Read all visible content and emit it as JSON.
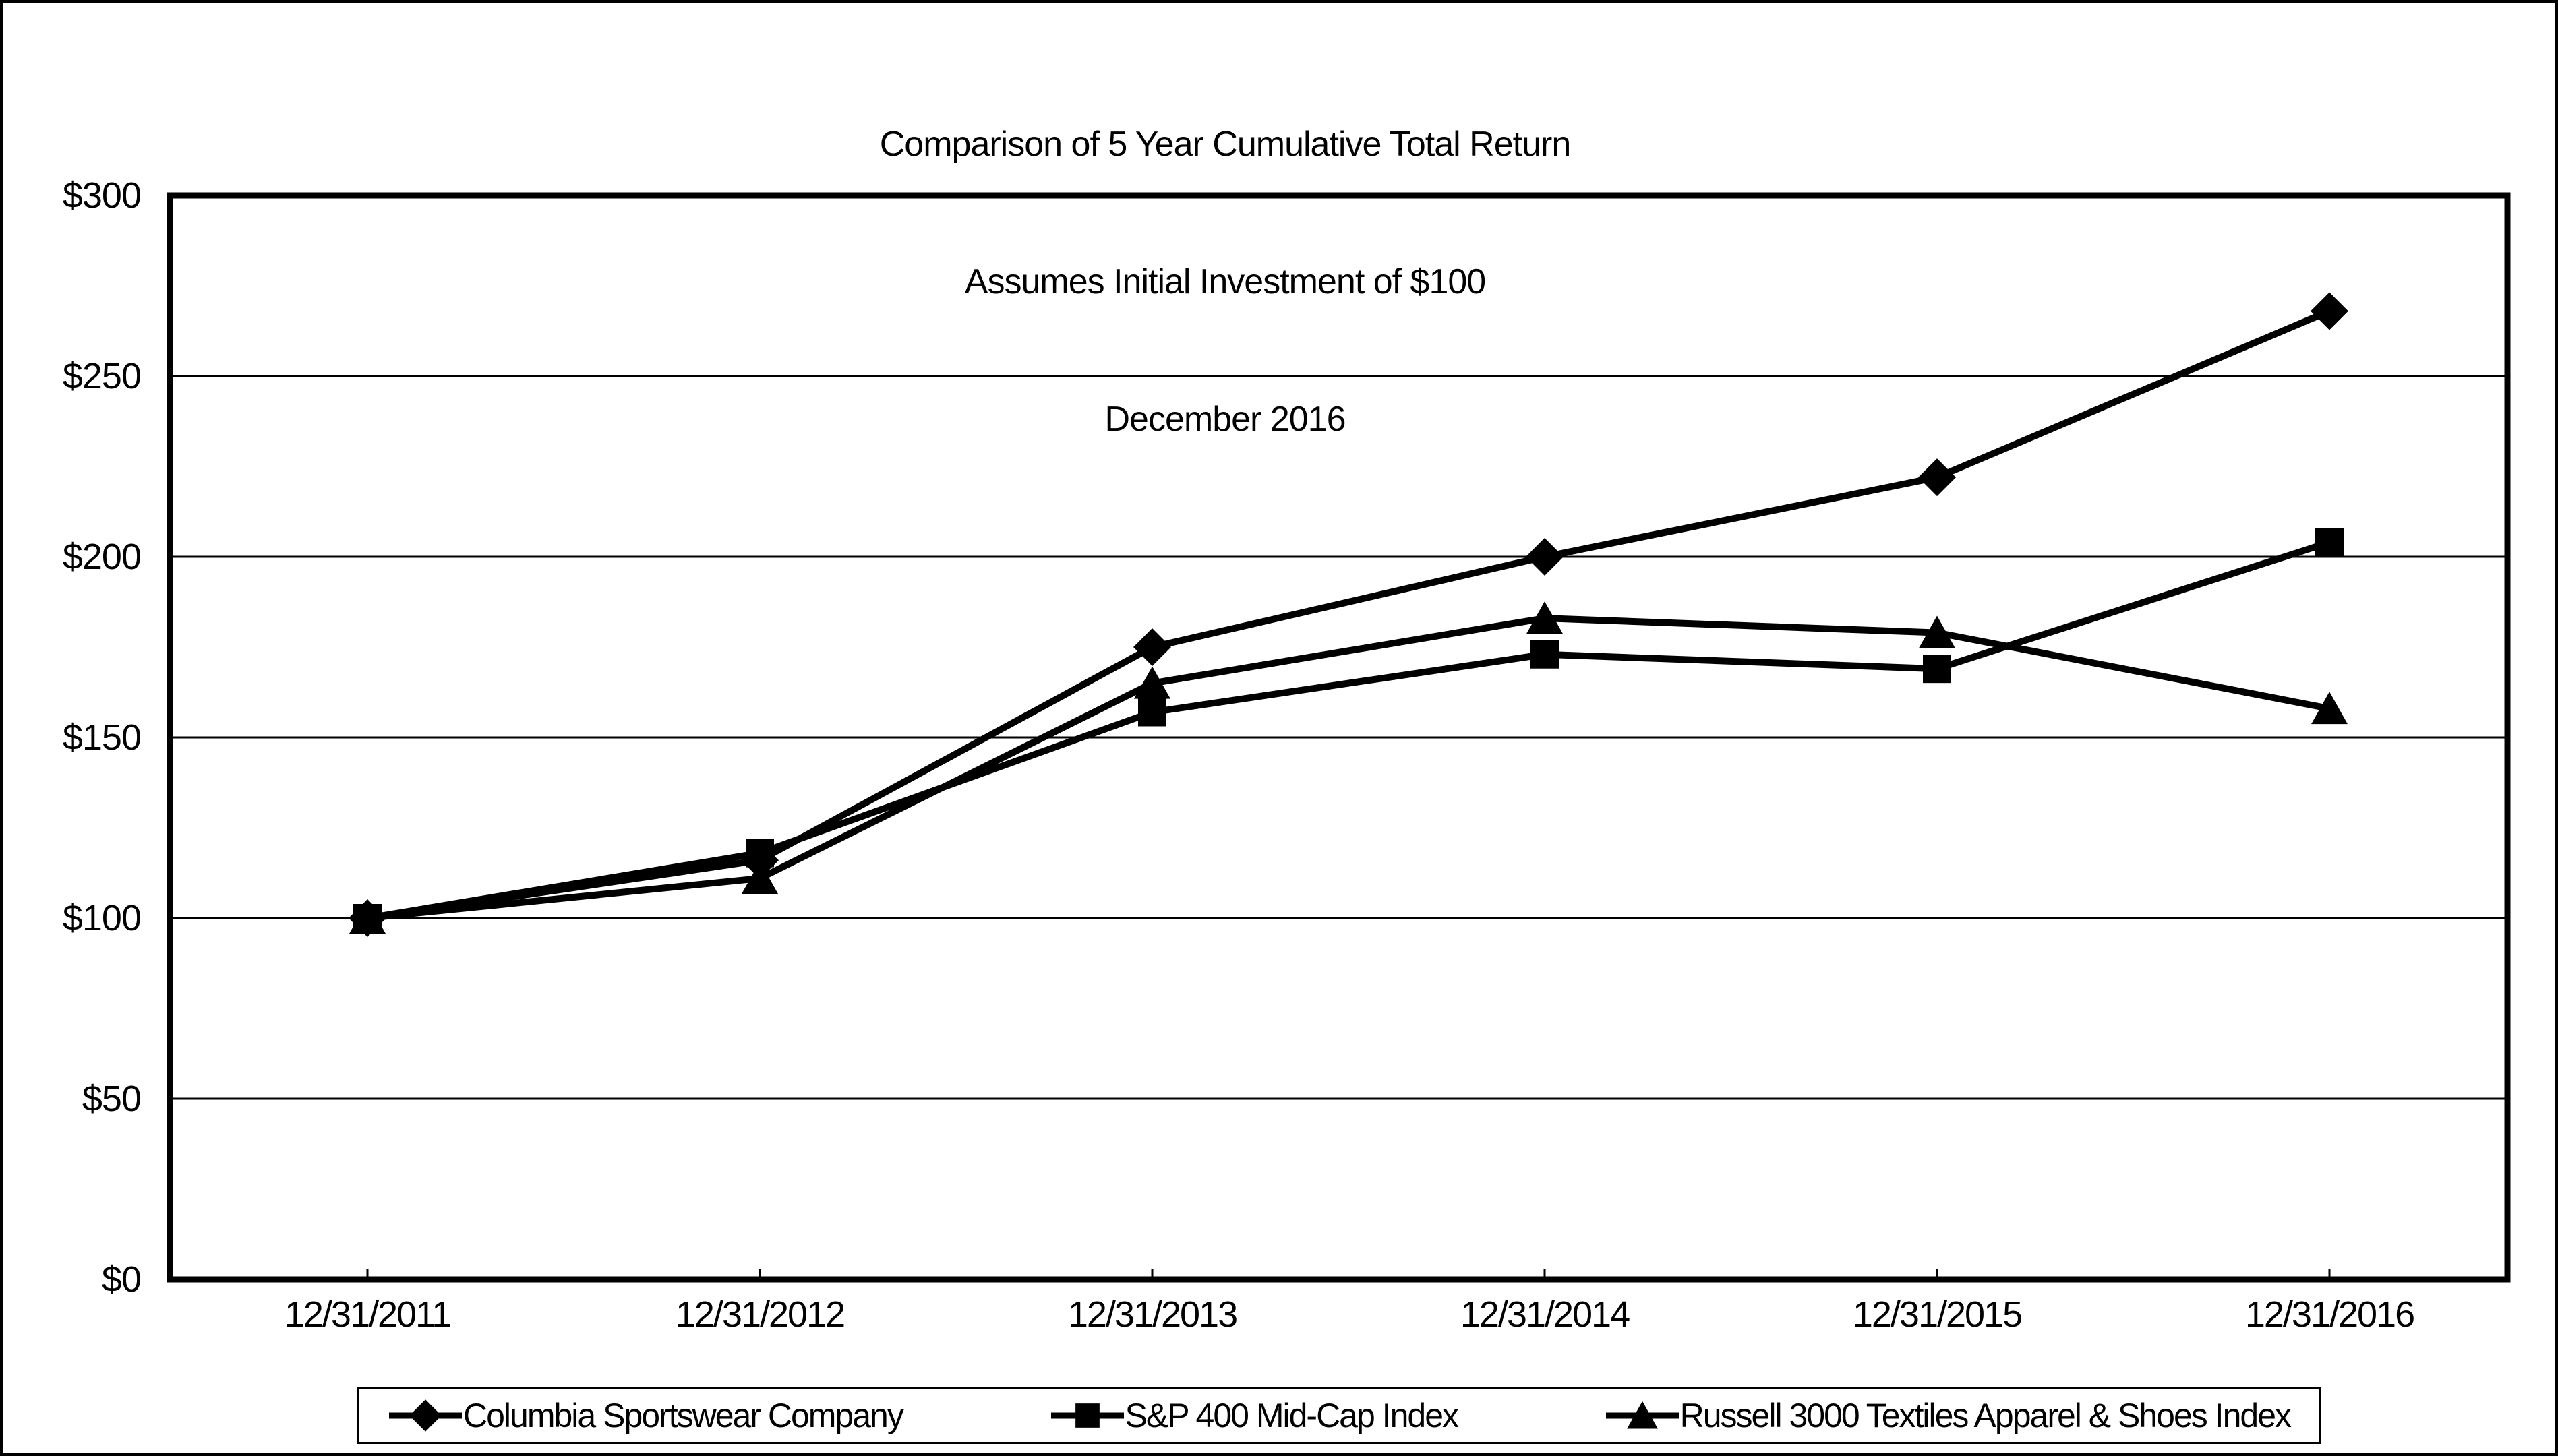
{
  "chart_data": {
    "type": "line",
    "title_lines": [
      "Comparison of 5 Year Cumulative Total Return",
      "Assumes Initial Investment of $100",
      "December 2016"
    ],
    "x_tick_labels": [
      "12/31/2011",
      "12/31/2012",
      "12/31/2013",
      "12/31/2014",
      "12/31/2015",
      "12/31/2016"
    ],
    "y_tick_labels": [
      "$300",
      "$250",
      "$200",
      "$150",
      "$100",
      "$50",
      "$0"
    ],
    "ylim": [
      0,
      300
    ],
    "y_gridline_step": 50,
    "grid": "horizontal",
    "legend_position": "bottom",
    "series": [
      {
        "name": "Columbia Sportswear Company",
        "marker": "diamond",
        "values": [
          100,
          116,
          175,
          200,
          222,
          268
        ]
      },
      {
        "name": "S&P 400 Mid-Cap Index",
        "marker": "square",
        "values": [
          100,
          118,
          157,
          173,
          169,
          204
        ]
      },
      {
        "name": "Russell 3000 Textiles Apparel & Shoes Index",
        "marker": "triangle",
        "values": [
          100,
          111,
          165,
          183,
          179,
          158
        ]
      }
    ],
    "colors": {
      "line": "#000000",
      "background": "#ffffff"
    }
  }
}
